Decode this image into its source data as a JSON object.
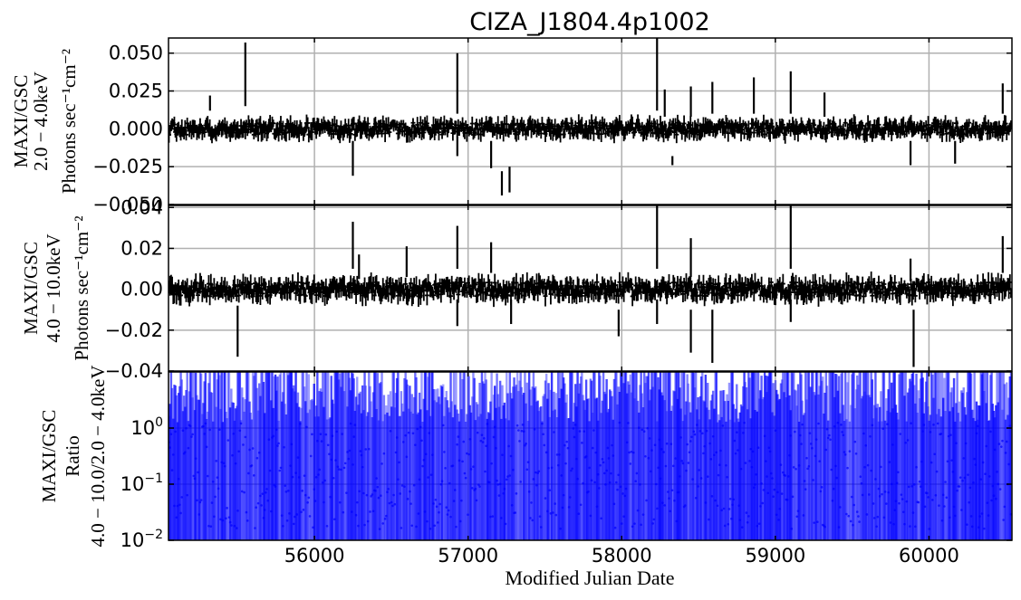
{
  "chart_data": {
    "title": "CIZA_J1804.4p1002",
    "xlabel": "Modified Julian Date",
    "xlim": [
      55050,
      60540
    ],
    "x_ticks": [
      56000,
      57000,
      58000,
      59000,
      60000
    ],
    "x_tick_labels": [
      "56000",
      "57000",
      "58000",
      "59000",
      "60000"
    ],
    "panels": [
      {
        "type": "line",
        "style": "errorbar",
        "ylabel_lines": [
          "MAXI/GSC",
          "2.0 − 4.0keV",
          "Photons sec⁻¹cm⁻²"
        ],
        "ylim": [
          -0.05,
          0.06
        ],
        "y_ticks": [
          -0.05,
          -0.025,
          0.0,
          0.025,
          0.05
        ],
        "y_tick_labels": [
          "−0.050",
          "−0.025",
          "0.000",
          "0.025",
          "0.050"
        ],
        "grid": true,
        "color": "#000000",
        "spikes": [
          {
            "x": 55320,
            "y": 0.022,
            "low": 0.012
          },
          {
            "x": 55550,
            "y": 0.057,
            "low": 0.015
          },
          {
            "x": 56250,
            "y": -0.031,
            "low": -0.008
          },
          {
            "x": 56930,
            "y": 0.05,
            "low": 0.01
          },
          {
            "x": 56930,
            "y": -0.018,
            "low": -0.005
          },
          {
            "x": 57150,
            "y": -0.026,
            "low": -0.008
          },
          {
            "x": 57220,
            "y": -0.044,
            "low": -0.028
          },
          {
            "x": 57270,
            "y": -0.042,
            "low": -0.025
          },
          {
            "x": 58230,
            "y": 0.06,
            "low": 0.012
          },
          {
            "x": 58280,
            "y": 0.026,
            "low": 0.008
          },
          {
            "x": 58330,
            "y": -0.024,
            "low": -0.018
          },
          {
            "x": 58450,
            "y": 0.028,
            "low": 0.008
          },
          {
            "x": 58590,
            "y": 0.031,
            "low": 0.01
          },
          {
            "x": 58860,
            "y": 0.034,
            "low": 0.01
          },
          {
            "x": 59100,
            "y": 0.038,
            "low": 0.01
          },
          {
            "x": 59320,
            "y": 0.024,
            "low": 0.008
          },
          {
            "x": 59880,
            "y": -0.024,
            "low": -0.008
          },
          {
            "x": 60170,
            "y": -0.023,
            "low": -0.008
          },
          {
            "x": 60480,
            "y": 0.03,
            "low": 0.01
          }
        ]
      },
      {
        "type": "line",
        "style": "errorbar",
        "ylabel_lines": [
          "MAXI/GSC",
          "4.0 − 10.0keV",
          "Photons sec⁻¹cm⁻²"
        ],
        "ylim": [
          -0.04,
          0.041
        ],
        "y_ticks": [
          -0.04,
          -0.02,
          0.0,
          0.02,
          0.04
        ],
        "y_tick_labels": [
          "−0.04",
          "−0.02",
          "0.00",
          "0.02",
          "0.04"
        ],
        "grid": true,
        "color": "#000000",
        "spikes": [
          {
            "x": 55500,
            "y": -0.033,
            "low": -0.008
          },
          {
            "x": 56250,
            "y": 0.033,
            "low": 0.01
          },
          {
            "x": 56290,
            "y": 0.017,
            "low": 0.005
          },
          {
            "x": 56600,
            "y": 0.021,
            "low": 0.006
          },
          {
            "x": 56930,
            "y": 0.031,
            "low": 0.01
          },
          {
            "x": 56930,
            "y": -0.018,
            "low": -0.005
          },
          {
            "x": 57150,
            "y": 0.023,
            "low": 0.008
          },
          {
            "x": 57280,
            "y": -0.017,
            "low": -0.005
          },
          {
            "x": 57980,
            "y": -0.023,
            "low": -0.01
          },
          {
            "x": 58230,
            "y": 0.041,
            "low": 0.01
          },
          {
            "x": 58230,
            "y": -0.017,
            "low": -0.005
          },
          {
            "x": 58450,
            "y": 0.025,
            "low": 0.006
          },
          {
            "x": 58450,
            "y": -0.031,
            "low": -0.01
          },
          {
            "x": 58590,
            "y": -0.036,
            "low": -0.01
          },
          {
            "x": 59100,
            "y": 0.041,
            "low": 0.01
          },
          {
            "x": 59100,
            "y": -0.016,
            "low": -0.005
          },
          {
            "x": 59880,
            "y": 0.015,
            "low": 0.004
          },
          {
            "x": 59900,
            "y": -0.038,
            "low": -0.01
          },
          {
            "x": 60480,
            "y": 0.026,
            "low": 0.008
          }
        ]
      },
      {
        "type": "line",
        "style": "errorbar",
        "scale": "log",
        "ylabel_lines": [
          "MAXI/GSC",
          "Ratio",
          "4.0 − 10.0/2.0 − 4.0keV"
        ],
        "ylim": [
          0.01,
          10
        ],
        "y_ticks": [
          0.01,
          0.1,
          1
        ],
        "y_tick_labels": [
          [
            "10",
            "−2"
          ],
          [
            "10",
            "−1"
          ],
          [
            "10",
            "0"
          ]
        ],
        "grid": true,
        "color": "#0000ff"
      }
    ]
  }
}
